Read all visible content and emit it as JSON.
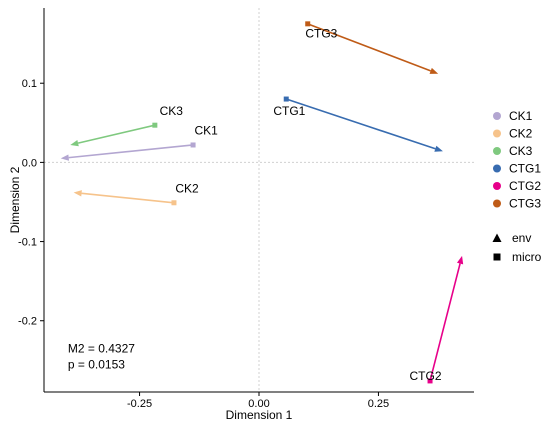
{
  "chart_data": {
    "type": "scatter",
    "title": "",
    "xlabel": "Dimension 1",
    "ylabel": "Dimension 2",
    "xlim": [
      -0.45,
      0.45
    ],
    "ylim": [
      -0.29,
      0.195
    ],
    "x_ticks": [
      {
        "value": -0.25,
        "label": "-0.25"
      },
      {
        "value": 0.0,
        "label": "0.00"
      },
      {
        "value": 0.25,
        "label": "0.25"
      }
    ],
    "y_ticks": [
      {
        "value": 0.1,
        "label": "0.1"
      },
      {
        "value": 0.0,
        "label": "0.0"
      },
      {
        "value": -0.1,
        "label": "-0.1"
      },
      {
        "value": -0.2,
        "label": "-0.2"
      }
    ],
    "reference_lines": {
      "x": 0,
      "y": 0
    },
    "grid": false,
    "series": [
      {
        "name": "CK1",
        "color": "#b3a6d1",
        "micro": [
          -0.138,
          0.022
        ],
        "env": [
          -0.415,
          0.005
        ]
      },
      {
        "name": "CK2",
        "color": "#f6c38b",
        "micro": [
          -0.178,
          -0.051
        ],
        "env": [
          -0.388,
          -0.038
        ]
      },
      {
        "name": "CK3",
        "color": "#7fc97f",
        "micro": [
          -0.218,
          0.047
        ],
        "env": [
          -0.395,
          0.022
        ]
      },
      {
        "name": "CTG1",
        "color": "#386cb0",
        "micro": [
          0.057,
          0.08
        ],
        "env": [
          0.385,
          0.014
        ]
      },
      {
        "name": "CTG2",
        "color": "#e7008a",
        "micro": [
          0.358,
          -0.276
        ],
        "env": [
          0.425,
          -0.118
        ]
      },
      {
        "name": "CTG3",
        "color": "#bf5b17",
        "micro": [
          0.102,
          0.175
        ],
        "env": [
          0.375,
          0.112
        ]
      }
    ],
    "point_labels": [
      {
        "text": "CK1",
        "x": -0.135,
        "y": 0.035
      },
      {
        "text": "CK2",
        "x": -0.175,
        "y": -0.038
      },
      {
        "text": "CK3",
        "x": -0.208,
        "y": 0.06
      },
      {
        "text": "CTG1",
        "x": 0.03,
        "y": 0.06
      },
      {
        "text": "CTG2",
        "x": 0.315,
        "y": -0.275
      },
      {
        "text": "CTG3",
        "x": 0.097,
        "y": 0.158
      }
    ],
    "annotation": {
      "m2": "M2 = 0.4327",
      "p": "p = 0.0153",
      "x": -0.4,
      "y": -0.24
    },
    "legend": {
      "position": "right",
      "items": [
        {
          "label": "CK1",
          "color": "#b3a6d1"
        },
        {
          "label": "CK2",
          "color": "#f6c38b"
        },
        {
          "label": "CK3",
          "color": "#7fc97f"
        },
        {
          "label": "CTG1",
          "color": "#386cb0"
        },
        {
          "label": "CTG2",
          "color": "#e7008a"
        },
        {
          "label": "CTG3",
          "color": "#bf5b17"
        }
      ],
      "shapes": [
        {
          "label": "env",
          "shape": "triangle"
        },
        {
          "label": "micro",
          "shape": "square"
        }
      ]
    }
  }
}
